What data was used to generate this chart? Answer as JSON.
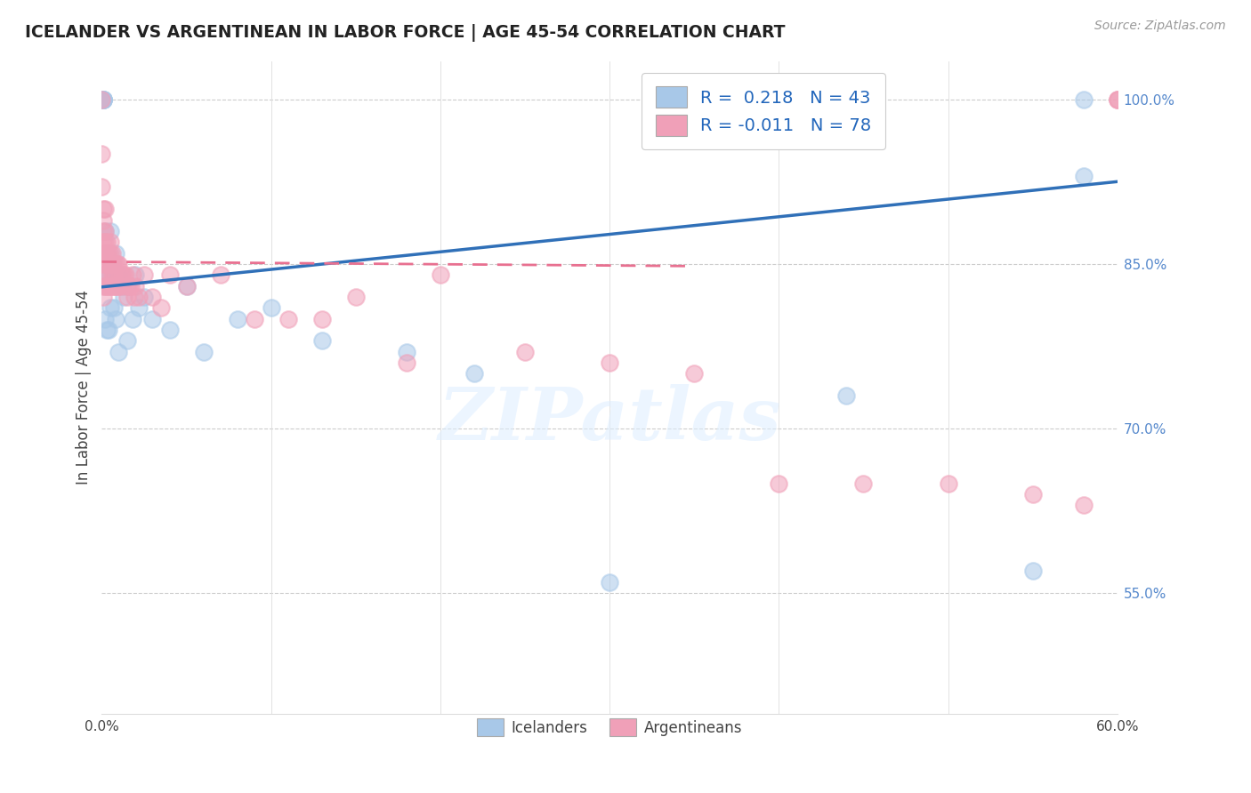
{
  "title": "ICELANDER VS ARGENTINEAN IN LABOR FORCE | AGE 45-54 CORRELATION CHART",
  "source": "Source: ZipAtlas.com",
  "ylabel": "In Labor Force | Age 45-54",
  "xlim": [
    0.0,
    0.6
  ],
  "ylim": [
    0.44,
    1.035
  ],
  "yticks": [
    0.55,
    0.7,
    0.85,
    1.0
  ],
  "ytick_labels": [
    "55.0%",
    "70.0%",
    "85.0%",
    "100.0%"
  ],
  "xticks": [
    0.0,
    0.1,
    0.2,
    0.3,
    0.4,
    0.5,
    0.6
  ],
  "xtick_labels": [
    "0.0%",
    "",
    "",
    "",
    "",
    "",
    "60.0%"
  ],
  "legend_blue_r": "R =  0.218",
  "legend_blue_n": "N = 43",
  "legend_pink_r": "R = -0.011",
  "legend_pink_n": "N = 78",
  "watermark": "ZIPatlas",
  "blue_color": "#A8C8E8",
  "pink_color": "#F0A0B8",
  "blue_line_color": "#3070B8",
  "pink_line_color": "#E87090",
  "icelanders_x": [
    0.001,
    0.001,
    0.001,
    0.001,
    0.001,
    0.002,
    0.002,
    0.002,
    0.003,
    0.003,
    0.004,
    0.004,
    0.005,
    0.005,
    0.006,
    0.007,
    0.008,
    0.008,
    0.009,
    0.01,
    0.01,
    0.012,
    0.013,
    0.015,
    0.015,
    0.018,
    0.02,
    0.022,
    0.025,
    0.03,
    0.04,
    0.05,
    0.06,
    0.08,
    0.1,
    0.13,
    0.18,
    0.22,
    0.3,
    0.44,
    0.55,
    0.58,
    0.58
  ],
  "icelanders_y": [
    1.0,
    1.0,
    1.0,
    1.0,
    1.0,
    0.88,
    0.84,
    0.8,
    0.86,
    0.79,
    0.84,
    0.79,
    0.88,
    0.81,
    0.85,
    0.81,
    0.86,
    0.8,
    0.84,
    0.84,
    0.77,
    0.83,
    0.82,
    0.83,
    0.78,
    0.8,
    0.84,
    0.81,
    0.82,
    0.8,
    0.79,
    0.83,
    0.77,
    0.8,
    0.81,
    0.78,
    0.77,
    0.75,
    0.56,
    0.73,
    0.57,
    1.0,
    0.93
  ],
  "argentineans_x": [
    0.0,
    0.0,
    0.0,
    0.001,
    0.001,
    0.001,
    0.001,
    0.001,
    0.001,
    0.001,
    0.001,
    0.001,
    0.002,
    0.002,
    0.002,
    0.002,
    0.002,
    0.002,
    0.003,
    0.003,
    0.003,
    0.003,
    0.004,
    0.004,
    0.004,
    0.005,
    0.005,
    0.005,
    0.005,
    0.006,
    0.006,
    0.006,
    0.006,
    0.007,
    0.007,
    0.007,
    0.008,
    0.008,
    0.009,
    0.009,
    0.01,
    0.01,
    0.011,
    0.012,
    0.012,
    0.013,
    0.014,
    0.015,
    0.015,
    0.016,
    0.017,
    0.018,
    0.019,
    0.02,
    0.022,
    0.025,
    0.03,
    0.035,
    0.04,
    0.05,
    0.07,
    0.09,
    0.11,
    0.13,
    0.15,
    0.18,
    0.2,
    0.25,
    0.3,
    0.35,
    0.4,
    0.45,
    0.5,
    0.55,
    0.58,
    0.6,
    0.6,
    0.6
  ],
  "argentineans_y": [
    1.0,
    0.95,
    0.92,
    0.9,
    0.89,
    0.88,
    0.87,
    0.86,
    0.85,
    0.84,
    0.83,
    0.82,
    0.9,
    0.88,
    0.87,
    0.86,
    0.85,
    0.83,
    0.87,
    0.86,
    0.84,
    0.83,
    0.86,
    0.85,
    0.83,
    0.87,
    0.86,
    0.85,
    0.83,
    0.86,
    0.85,
    0.84,
    0.83,
    0.85,
    0.84,
    0.83,
    0.85,
    0.83,
    0.85,
    0.83,
    0.85,
    0.83,
    0.84,
    0.84,
    0.83,
    0.84,
    0.84,
    0.83,
    0.82,
    0.83,
    0.83,
    0.84,
    0.82,
    0.83,
    0.82,
    0.84,
    0.82,
    0.81,
    0.84,
    0.83,
    0.84,
    0.8,
    0.8,
    0.8,
    0.82,
    0.76,
    0.84,
    0.77,
    0.76,
    0.75,
    0.65,
    0.65,
    0.65,
    0.64,
    0.63,
    1.0,
    1.0,
    1.0
  ],
  "blue_regression_x0": 0.0,
  "blue_regression_y0": 0.829,
  "blue_regression_x1": 0.6,
  "blue_regression_y1": 0.925,
  "pink_regression_x0": 0.0,
  "pink_regression_y0": 0.852,
  "pink_regression_x1": 0.35,
  "pink_regression_y1": 0.848
}
